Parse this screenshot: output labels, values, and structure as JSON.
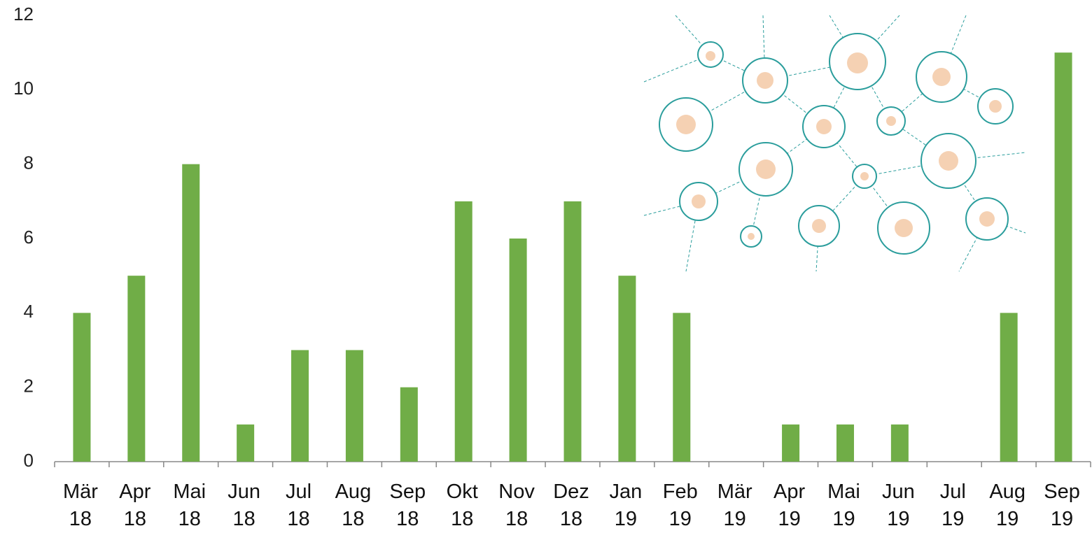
{
  "chart_data": {
    "type": "bar",
    "categories": [
      "Mär 18",
      "Apr 18",
      "Mai 18",
      "Jun 18",
      "Jul 18",
      "Aug 18",
      "Sep 18",
      "Okt 18",
      "Nov 18",
      "Dez 18",
      "Jan 19",
      "Feb 19",
      "Mär 19",
      "Apr 19",
      "Mai 19",
      "Jun 19",
      "Jul 19",
      "Aug 19",
      "Sep 19"
    ],
    "values": [
      4,
      5,
      8,
      1,
      3,
      3,
      2,
      7,
      6,
      7,
      5,
      4,
      0,
      1,
      1,
      1,
      0,
      4,
      11
    ],
    "color": "#70ad47",
    "ylim": [
      0,
      12
    ],
    "yticks": [
      0,
      2,
      4,
      6,
      8,
      10,
      12
    ],
    "grid": false
  }
}
